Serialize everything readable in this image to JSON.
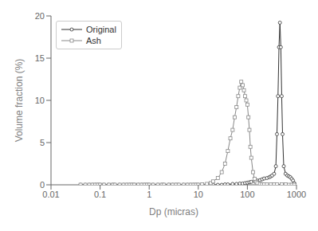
{
  "chart_data": {
    "type": "line",
    "xlabel": "Dp (micras)",
    "ylabel": "Volume fraction (%)",
    "log": "x",
    "grid": false,
    "legend": "upper left",
    "xlim": [
      0.01,
      1000
    ],
    "xticks": [
      0.01,
      0.1,
      1,
      10,
      100,
      1000
    ],
    "ylim": [
      0,
      20
    ],
    "yticks": [
      0,
      5,
      10,
      15,
      20
    ],
    "series": [
      {
        "name": "Original",
        "color": "#333333",
        "marker": "circle",
        "x": [
          0.04,
          0.05,
          0.06,
          0.07,
          0.08,
          0.09,
          0.1,
          0.12,
          0.15,
          0.18,
          0.2,
          0.25,
          0.3,
          0.35,
          0.4,
          0.45,
          0.5,
          0.6,
          0.7,
          0.8,
          0.9,
          1.0,
          1.2,
          1.5,
          1.8,
          2.0,
          2.5,
          3.0,
          3.5,
          4.0,
          5.0,
          6.0,
          7.0,
          8.0,
          9.0,
          10.0,
          12.0,
          15.0,
          18.0,
          20.0,
          25.0,
          30.0,
          35.0,
          40.0,
          50.0,
          60.0,
          70.0,
          80.0,
          90.0,
          100.0,
          110.0,
          120.0,
          140.0,
          160.0,
          180.0,
          200.0,
          220.0,
          250.0,
          280.0,
          300.0,
          320.0,
          350.0,
          380.0,
          400.0,
          420.0,
          440.0,
          460.0,
          480.0,
          500.0,
          520.0,
          550.0,
          600.0,
          650.0,
          700.0,
          750.0,
          800.0,
          850.0,
          900.0,
          950.0
        ],
        "values": [
          0.0,
          0.0,
          0.0,
          0.0,
          0.0,
          0.0,
          0.0,
          0.0,
          0.0,
          0.0,
          0.0,
          0.0,
          0.0,
          0.0,
          0.0,
          0.0,
          0.0,
          0.0,
          0.0,
          0.0,
          0.0,
          0.0,
          0.0,
          0.0,
          0.0,
          0.0,
          0.0,
          0.0,
          0.0,
          0.0,
          0.0,
          0.0,
          0.0,
          0.0,
          0.0,
          0.0,
          0.0,
          0.0,
          0.0,
          0.0,
          0.0,
          0.0,
          0.05,
          0.05,
          0.1,
          0.1,
          0.15,
          0.15,
          0.2,
          0.25,
          0.3,
          0.35,
          0.45,
          0.5,
          0.55,
          0.65,
          0.75,
          0.8,
          0.9,
          1.0,
          1.1,
          1.3,
          2.2,
          6.0,
          10.5,
          16.3,
          19.2,
          16.3,
          10.5,
          6.0,
          2.2,
          1.3,
          1.1,
          1.0,
          0.9,
          0.7,
          0.5,
          0.2,
          0.0
        ]
      },
      {
        "name": "Ash",
        "color": "#888888",
        "marker": "square",
        "x": [
          0.04,
          0.05,
          0.06,
          0.07,
          0.08,
          0.09,
          0.1,
          0.12,
          0.15,
          0.18,
          0.2,
          0.25,
          0.3,
          0.35,
          0.4,
          0.45,
          0.5,
          0.6,
          0.7,
          0.8,
          0.9,
          1.0,
          1.2,
          1.5,
          1.8,
          2.0,
          2.5,
          3.0,
          3.5,
          4.0,
          5.0,
          6.0,
          7.0,
          8.0,
          9.0,
          10.0,
          12.0,
          15.0,
          18.0,
          20.0,
          25.0,
          30.0,
          35.0,
          40.0,
          45.0,
          50.0,
          55.0,
          60.0,
          65.0,
          70.0,
          75.0,
          80.0,
          85.0,
          90.0,
          95.0,
          100.0,
          105.0,
          110.0,
          115.0,
          120.0,
          130.0,
          140.0,
          150.0,
          160.0,
          180.0,
          200.0,
          220.0,
          250.0,
          300.0,
          350.0,
          400.0,
          500.0,
          600.0,
          700.0,
          800.0,
          900.0
        ],
        "values": [
          0.0,
          0.0,
          0.0,
          0.0,
          0.0,
          0.0,
          0.0,
          0.0,
          0.0,
          0.0,
          0.0,
          0.0,
          0.0,
          0.0,
          0.0,
          0.0,
          0.0,
          0.0,
          0.0,
          0.0,
          0.0,
          0.0,
          0.0,
          0.0,
          0.0,
          0.0,
          0.0,
          0.0,
          0.0,
          0.0,
          0.0,
          0.0,
          0.0,
          0.0,
          0.0,
          0.0,
          0.05,
          0.1,
          0.2,
          0.4,
          0.8,
          1.5,
          2.5,
          4.0,
          5.5,
          6.5,
          8.0,
          9.2,
          10.5,
          11.5,
          12.2,
          11.8,
          11.2,
          10.5,
          10.0,
          9.5,
          8.0,
          6.5,
          4.5,
          3.2,
          1.5,
          0.7,
          0.35,
          0.2,
          0.1,
          0.05,
          0.05,
          0.05,
          0.05,
          0.05,
          0.05,
          0.05,
          0.05,
          0.0,
          0.0,
          0.0
        ]
      }
    ]
  }
}
